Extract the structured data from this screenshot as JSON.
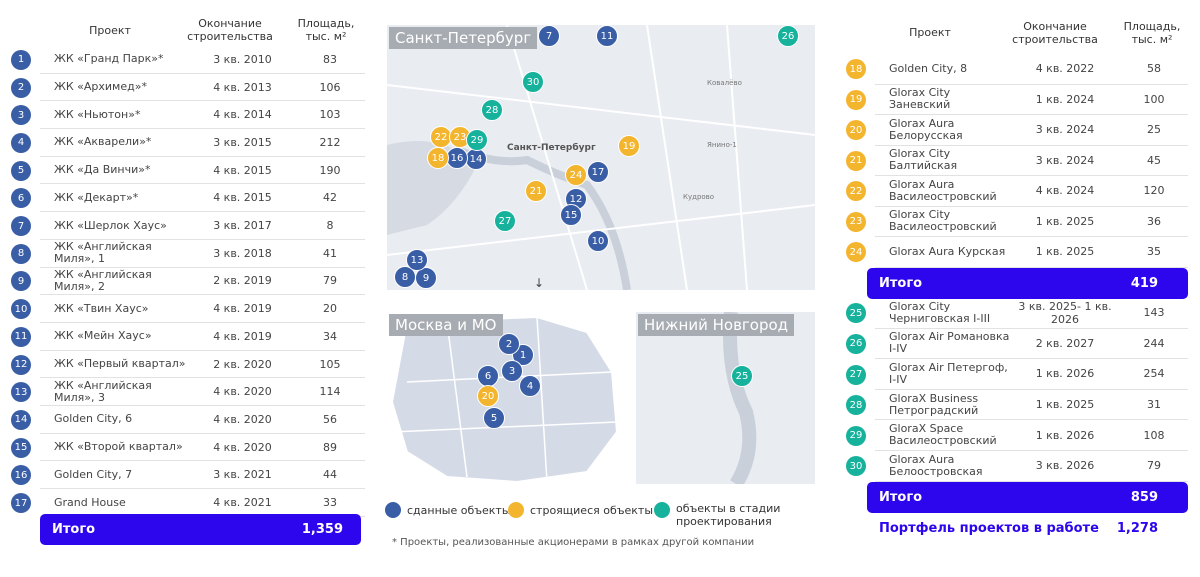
{
  "colors": {
    "completed": "#3a5ea6",
    "construction": "#f3b52e",
    "design": "#17b29c",
    "accent": "#2d06ee"
  },
  "left": {
    "headers": {
      "project": "Проект",
      "end": "Окончание строительства",
      "area": "Площадь, тыс. м²"
    },
    "rows": [
      {
        "n": "1",
        "name": "ЖК «Гранд Парк»*",
        "end": "3 кв. 2010",
        "area": "83"
      },
      {
        "n": "2",
        "name": "ЖК «Архимед»*",
        "end": "4 кв. 2013",
        "area": "106"
      },
      {
        "n": "3",
        "name": "ЖК «Ньютон»*",
        "end": "4 кв. 2014",
        "area": "103"
      },
      {
        "n": "4",
        "name": "ЖК «Акварели»*",
        "end": "3 кв. 2015",
        "area": "212"
      },
      {
        "n": "5",
        "name": "ЖК «Да Винчи»*",
        "end": "4 кв. 2015",
        "area": "190"
      },
      {
        "n": "6",
        "name": "ЖК «Декарт»*",
        "end": "4 кв. 2015",
        "area": "42"
      },
      {
        "n": "7",
        "name": "ЖК «Шерлок Хаус»",
        "end": "3 кв. 2017",
        "area": "8"
      },
      {
        "n": "8",
        "name": "ЖК «Английская Миля», 1",
        "end": "3 кв. 2018",
        "area": "41"
      },
      {
        "n": "9",
        "name": "ЖК «Английская Миля», 2",
        "end": "2 кв. 2019",
        "area": "79"
      },
      {
        "n": "10",
        "name": "ЖК «Твин Хаус»",
        "end": "4 кв. 2019",
        "area": "20"
      },
      {
        "n": "11",
        "name": "ЖК «Мейн Хаус»",
        "end": "4 кв. 2019",
        "area": "34"
      },
      {
        "n": "12",
        "name": "ЖК «Первый квартал»",
        "end": "2 кв. 2020",
        "area": "105"
      },
      {
        "n": "13",
        "name": "ЖК «Английская Миля», 3",
        "end": "4 кв. 2020",
        "area": "114"
      },
      {
        "n": "14",
        "name": "Golden City, 6",
        "end": "4 кв. 2020",
        "area": "56"
      },
      {
        "n": "15",
        "name": "ЖК «Второй квартал»",
        "end": "4 кв. 2020",
        "area": "89"
      },
      {
        "n": "16",
        "name": "Golden City, 7",
        "end": "3 кв. 2021",
        "area": "44"
      },
      {
        "n": "17",
        "name": "Grand House",
        "end": "4 кв. 2021",
        "area": "33"
      }
    ],
    "total": {
      "label": "Итого",
      "value": "1,359"
    }
  },
  "right": {
    "headers": {
      "project": "Проект",
      "end": "Окончание строительства",
      "area": "Площадь, тыс. м²"
    },
    "construction": [
      {
        "n": "18",
        "name": "Golden City, 8",
        "end": "4 кв. 2022",
        "area": "58"
      },
      {
        "n": "19",
        "name": "Glorax City Заневский",
        "end": "1 кв. 2024",
        "area": "100"
      },
      {
        "n": "20",
        "name": "Glorax Aura Белорусская",
        "end": "3 кв. 2024",
        "area": "25"
      },
      {
        "n": "21",
        "name": "Glorax City Балтийская",
        "end": "3 кв. 2024",
        "area": "45"
      },
      {
        "n": "22",
        "name": "Glorax Aura Василеостровский",
        "end": "4 кв. 2024",
        "area": "120"
      },
      {
        "n": "23",
        "name": "Glorax City Василеостровский",
        "end": "1 кв. 2025",
        "area": "36"
      },
      {
        "n": "24",
        "name": "Glorax Aura Курская",
        "end": "1 кв. 2025",
        "area": "35"
      }
    ],
    "total1": {
      "label": "Итого",
      "value": "419"
    },
    "design": [
      {
        "n": "25",
        "name": "Glorax City Черниговская I-III",
        "end": "3 кв. 2025- 1 кв. 2026",
        "area": "143"
      },
      {
        "n": "26",
        "name": "Glorax Air Романовка I-IV",
        "end": "2 кв. 2027",
        "area": "244"
      },
      {
        "n": "27",
        "name": "Glorax Air Петергоф, I-IV",
        "end": "1 кв. 2026",
        "area": "254"
      },
      {
        "n": "28",
        "name": "GloraX Business Петроградский",
        "end": "1 кв. 2025",
        "area": "31"
      },
      {
        "n": "29",
        "name": "GloraX Space Василеостровский",
        "end": "1 кв. 2026",
        "area": "108"
      },
      {
        "n": "30",
        "name": "Glorax Aura Белоостровская",
        "end": "3 кв. 2026",
        "area": "79"
      }
    ],
    "total2": {
      "label": "Итого",
      "value": "859"
    },
    "portfolio": {
      "label": "Портфель проектов в работе",
      "value": "1,278"
    }
  },
  "maps": {
    "spb": {
      "title": "Санкт-Петербург",
      "city_label": "Санкт-Петербург",
      "places": [
        "Ковалёво",
        "Янино-1",
        "Кудрово"
      ]
    },
    "moscow": {
      "title": "Москва и МО"
    },
    "nn": {
      "title": "Нижний Новгород"
    }
  },
  "legend": {
    "completed": "сданные объекты",
    "construction": "строящиеся объекты",
    "design": "объекты в стадии проектирования"
  },
  "footnote": "* Проекты, реализованные акционерами в рамках другой компании"
}
